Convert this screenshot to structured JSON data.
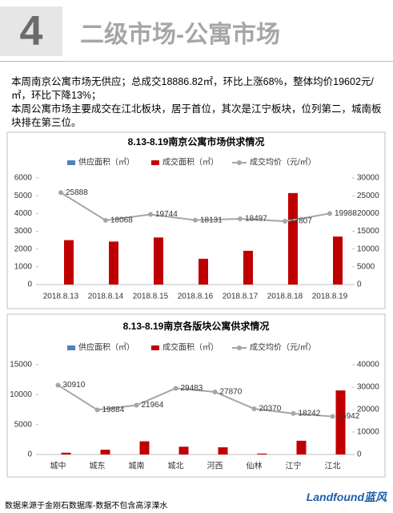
{
  "header": {
    "number": "4",
    "title": "二级市场-公寓市场"
  },
  "body": {
    "paragraphs": [
      "本周南京公寓市场无供应；总成交18886.82㎡，环比上涨68%，整体均价19602元/㎡，环比下降13%；",
      "本周公寓市场主要成交在江北板块，居于首位，其次是江宁板块，位列第二，城南板块排在第三位。"
    ]
  },
  "footer": {
    "source": "数据来源于金刚石数据库-数据不包含高淳溧水",
    "logo": "Landfound蓝风"
  },
  "chart_data": [
    {
      "type": "bar",
      "title": "8.13-8.19南京公寓市场供求情况",
      "categories": [
        "2018.8.13",
        "2018.8.14",
        "2018.8.15",
        "2018.8.16",
        "2018.8.17",
        "2018.8.18",
        "2018.8.19"
      ],
      "series": [
        {
          "name": "供应面积（㎡）",
          "color": "#4f81bd",
          "type": "bar",
          "values": [
            0,
            0,
            0,
            0,
            0,
            0,
            0
          ]
        },
        {
          "name": "成交面积（㎡）",
          "color": "#c00000",
          "type": "bar",
          "values": [
            2500,
            2420,
            2650,
            1450,
            1900,
            5150,
            2700
          ]
        },
        {
          "name": "成交均价（元/㎡）",
          "color": "#a6a6a6",
          "type": "line",
          "axis": "y2",
          "values": [
            25888,
            18068,
            19744,
            18131,
            18497,
            17807,
            19988
          ]
        }
      ],
      "ylim": [
        0,
        6000
      ],
      "yticks": [
        0,
        1000,
        2000,
        3000,
        4000,
        5000,
        6000
      ],
      "y2lim": [
        0,
        30000
      ],
      "y2ticks": [
        0,
        5000,
        10000,
        15000,
        20000,
        25000,
        30000
      ]
    },
    {
      "type": "bar",
      "title": "8.13-8.19南京各版块公寓供求情况",
      "categories": [
        "城中",
        "城东",
        "城南",
        "城北",
        "河西",
        "仙林",
        "江宁",
        "江北"
      ],
      "series": [
        {
          "name": "供应面积（㎡）",
          "color": "#4f81bd",
          "type": "bar",
          "values": [
            0,
            0,
            0,
            0,
            0,
            0,
            0,
            0
          ]
        },
        {
          "name": "成交面积（㎡）",
          "color": "#c00000",
          "type": "bar",
          "values": [
            300,
            800,
            2200,
            1300,
            1200,
            150,
            2300,
            10700
          ]
        },
        {
          "name": "成交均价（元/㎡）",
          "color": "#a6a6a6",
          "type": "line",
          "axis": "y2",
          "values": [
            30910,
            19884,
            21964,
            29483,
            27870,
            20370,
            18242,
            16942
          ]
        }
      ],
      "ylim": [
        0,
        15000
      ],
      "yticks": [
        0,
        5000,
        10000,
        15000
      ],
      "y2lim": [
        0,
        40000
      ],
      "y2ticks": [
        0,
        10000,
        20000,
        30000,
        40000
      ]
    }
  ]
}
